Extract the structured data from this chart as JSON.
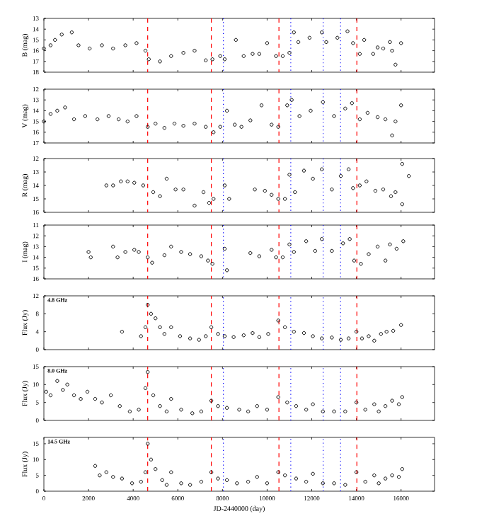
{
  "chart_data": [
    {
      "type": "scatter",
      "ylabel": "B (mag)",
      "xlim": [
        0,
        17500
      ],
      "xticks": [
        0,
        2000,
        4000,
        6000,
        8000,
        10000,
        12000,
        14000,
        16000
      ],
      "ylim": [
        18,
        13
      ],
      "yticks": [
        13,
        14,
        15,
        16,
        17,
        18
      ],
      "tick_labels": "y",
      "marker": "circle",
      "series": [
        {
          "color": "#000000",
          "x": [
            0,
            300,
            500,
            800,
            1250,
            1550,
            2050,
            2600,
            3100,
            3650,
            4150,
            4550,
            4700,
            5200,
            5700,
            6250,
            6750,
            7250,
            7550,
            7900,
            8100,
            8600,
            8950,
            9350,
            9650,
            10000,
            10400,
            10700,
            11000,
            11200,
            11400,
            11900,
            12450,
            12650,
            13150,
            13600,
            13850,
            14150,
            14350,
            14750,
            14950,
            15200,
            15500,
            15600,
            15750,
            16000
          ],
          "values": [
            15.8,
            15.5,
            15,
            14.5,
            14.3,
            15.5,
            15.8,
            15.5,
            15.8,
            15.5,
            15.3,
            16,
            16.8,
            17,
            16.5,
            16.2,
            16,
            16.9,
            16.8,
            16.5,
            16.8,
            15,
            16.5,
            16.3,
            16.3,
            15.3,
            16.5,
            16.5,
            16.2,
            14.3,
            15.2,
            14.8,
            14.3,
            15.2,
            14.8,
            14.2,
            15.3,
            16.3,
            15,
            16.3,
            15.7,
            15.8,
            15.2,
            16,
            17.3,
            15.3
          ]
        }
      ],
      "ref_lines": [
        {
          "axis": "x",
          "value": 4650,
          "color": "#ff0000",
          "line_style": "dashed"
        },
        {
          "axis": "x",
          "value": 7500,
          "color": "#ff0000",
          "line_style": "dashed"
        },
        {
          "axis": "x",
          "value": 10530,
          "color": "#ff0000",
          "line_style": "dashed"
        },
        {
          "axis": "x",
          "value": 14020,
          "color": "#ff0000",
          "line_style": "dashed"
        },
        {
          "axis": "x",
          "value": 8040,
          "color": "#0000ff",
          "line_style": "dotted"
        },
        {
          "axis": "x",
          "value": 11060,
          "color": "#0000ff",
          "line_style": "dotted"
        },
        {
          "axis": "x",
          "value": 12510,
          "color": "#0000ff",
          "line_style": "dotted"
        },
        {
          "axis": "x",
          "value": 13290,
          "color": "#0000ff",
          "line_style": "dotted"
        }
      ]
    },
    {
      "type": "scatter",
      "ylabel": "V (mag)",
      "xlim": [
        0,
        17500
      ],
      "xticks": [
        0,
        2000,
        4000,
        6000,
        8000,
        10000,
        12000,
        14000,
        16000
      ],
      "ylim": [
        17,
        12
      ],
      "yticks": [
        12,
        13,
        14,
        15,
        16,
        17
      ],
      "tick_labels": "y",
      "marker": "circle",
      "series": [
        {
          "color": "#000000",
          "x": [
            0,
            300,
            600,
            950,
            1350,
            1850,
            2400,
            2900,
            3350,
            3750,
            4150,
            4650,
            5000,
            5400,
            5850,
            6250,
            6750,
            7250,
            7600,
            7900,
            8200,
            8550,
            8850,
            9250,
            9750,
            10200,
            10500,
            10900,
            11100,
            11450,
            11950,
            12500,
            13000,
            13500,
            13800,
            14150,
            14500,
            14950,
            15300,
            15600,
            15750,
            16000
          ],
          "values": [
            15,
            14.3,
            14,
            13.7,
            14.8,
            14.5,
            14.8,
            14.5,
            14.8,
            15,
            14.5,
            15.5,
            15.2,
            15.6,
            15.2,
            15.4,
            15.2,
            15.5,
            16,
            15.5,
            14,
            15.3,
            15.5,
            14.9,
            13.5,
            15.3,
            15.5,
            13.5,
            13,
            14.5,
            14,
            13.2,
            14.5,
            13.8,
            13.3,
            14.8,
            14.2,
            14.6,
            14.8,
            16.3,
            15,
            13.5
          ]
        }
      ],
      "ref_lines": [
        {
          "axis": "x",
          "value": 4650,
          "color": "#ff0000",
          "line_style": "dashed"
        },
        {
          "axis": "x",
          "value": 7500,
          "color": "#ff0000",
          "line_style": "dashed"
        },
        {
          "axis": "x",
          "value": 10530,
          "color": "#ff0000",
          "line_style": "dashed"
        },
        {
          "axis": "x",
          "value": 14020,
          "color": "#ff0000",
          "line_style": "dashed"
        },
        {
          "axis": "x",
          "value": 8040,
          "color": "#0000ff",
          "line_style": "dotted"
        },
        {
          "axis": "x",
          "value": 11060,
          "color": "#0000ff",
          "line_style": "dotted"
        },
        {
          "axis": "x",
          "value": 12510,
          "color": "#0000ff",
          "line_style": "dotted"
        },
        {
          "axis": "x",
          "value": 13290,
          "color": "#0000ff",
          "line_style": "dotted"
        }
      ]
    },
    {
      "type": "scatter",
      "ylabel": "R (mag)",
      "xlim": [
        0,
        17500
      ],
      "xticks": [
        0,
        2000,
        4000,
        6000,
        8000,
        10000,
        12000,
        14000,
        16000
      ],
      "ylim": [
        16,
        12
      ],
      "yticks": [
        12,
        13,
        14,
        15,
        16
      ],
      "tick_labels": "y",
      "marker": "circle",
      "series": [
        {
          "color": "#000000",
          "x": [
            2800,
            3100,
            3450,
            3750,
            4050,
            4450,
            4900,
            5200,
            5500,
            5900,
            6250,
            6750,
            7150,
            7400,
            7600,
            8100,
            8300,
            9450,
            9900,
            10200,
            10500,
            10800,
            11000,
            11250,
            11650,
            12050,
            12450,
            12900,
            13300,
            13650,
            13850,
            14150,
            14450,
            14850,
            15200,
            15550,
            15750,
            16050,
            16050,
            16350
          ],
          "values": [
            14,
            14,
            13.7,
            13.7,
            13.8,
            14,
            14.5,
            14.8,
            13.5,
            14.3,
            14.3,
            15.5,
            14.5,
            15.3,
            15,
            14,
            15,
            14.3,
            14.4,
            14.7,
            15,
            15,
            13.2,
            14.5,
            12.9,
            13.5,
            12.8,
            14.3,
            13.3,
            12.8,
            14.2,
            14,
            13.7,
            14.4,
            14.3,
            14.8,
            14.5,
            15.4,
            12.4,
            13.3
          ]
        }
      ],
      "ref_lines": [
        {
          "axis": "x",
          "value": 4650,
          "color": "#ff0000",
          "line_style": "dashed"
        },
        {
          "axis": "x",
          "value": 7500,
          "color": "#ff0000",
          "line_style": "dashed"
        },
        {
          "axis": "x",
          "value": 10530,
          "color": "#ff0000",
          "line_style": "dashed"
        },
        {
          "axis": "x",
          "value": 14020,
          "color": "#ff0000",
          "line_style": "dashed"
        },
        {
          "axis": "x",
          "value": 8040,
          "color": "#0000ff",
          "line_style": "dotted"
        },
        {
          "axis": "x",
          "value": 11060,
          "color": "#0000ff",
          "line_style": "dotted"
        },
        {
          "axis": "x",
          "value": 12510,
          "color": "#0000ff",
          "line_style": "dotted"
        },
        {
          "axis": "x",
          "value": 13290,
          "color": "#0000ff",
          "line_style": "dotted"
        }
      ]
    },
    {
      "type": "scatter",
      "ylabel": "I (mag)",
      "xlim": [
        0,
        17500
      ],
      "xticks": [
        0,
        2000,
        4000,
        6000,
        8000,
        10000,
        12000,
        14000,
        16000
      ],
      "ylim": [
        16,
        11
      ],
      "yticks": [
        11,
        12,
        13,
        14,
        15,
        16
      ],
      "tick_labels": "y",
      "marker": "circle",
      "series": [
        {
          "color": "#000000",
          "x": [
            2000,
            2100,
            3100,
            3300,
            3650,
            4050,
            4250,
            4650,
            4850,
            5400,
            5700,
            6150,
            6550,
            7050,
            7350,
            7550,
            8100,
            8200,
            9250,
            9650,
            10200,
            10400,
            10700,
            11000,
            11200,
            11750,
            12150,
            12450,
            12900,
            13400,
            13700,
            13900,
            14200,
            14550,
            14950,
            15300,
            15500,
            15800,
            16100
          ],
          "values": [
            13.5,
            14,
            13,
            14,
            13.5,
            13.3,
            13.5,
            14,
            14.5,
            13.8,
            13,
            13.5,
            13.7,
            13.9,
            14.3,
            14.6,
            13.2,
            15.2,
            13.6,
            13.9,
            13.3,
            14,
            14,
            12.8,
            13.5,
            12.5,
            13.4,
            12.3,
            13.4,
            12.7,
            12.3,
            14.3,
            14.6,
            13.7,
            13,
            14.3,
            12.8,
            13.2,
            12.5
          ]
        }
      ],
      "ref_lines": [
        {
          "axis": "x",
          "value": 4650,
          "color": "#ff0000",
          "line_style": "dashed"
        },
        {
          "axis": "x",
          "value": 7500,
          "color": "#ff0000",
          "line_style": "dashed"
        },
        {
          "axis": "x",
          "value": 10530,
          "color": "#ff0000",
          "line_style": "dashed"
        },
        {
          "axis": "x",
          "value": 14020,
          "color": "#ff0000",
          "line_style": "dashed"
        },
        {
          "axis": "x",
          "value": 8040,
          "color": "#0000ff",
          "line_style": "dotted"
        },
        {
          "axis": "x",
          "value": 11060,
          "color": "#0000ff",
          "line_style": "dotted"
        },
        {
          "axis": "x",
          "value": 12510,
          "color": "#0000ff",
          "line_style": "dotted"
        },
        {
          "axis": "x",
          "value": 13290,
          "color": "#0000ff",
          "line_style": "dotted"
        }
      ]
    },
    {
      "type": "scatter",
      "ylabel": "Flux (Jy)",
      "annotations": [
        "4.8 GHz"
      ],
      "xlim": [
        0,
        17500
      ],
      "xticks": [
        0,
        2000,
        4000,
        6000,
        8000,
        10000,
        12000,
        14000,
        16000
      ],
      "ylim": [
        0,
        12
      ],
      "yticks": [
        0,
        4,
        8,
        12
      ],
      "tick_labels": "y",
      "marker": "circle",
      "series": [
        {
          "color": "#000000",
          "x": [
            3500,
            4350,
            4550,
            4650,
            4800,
            5000,
            5200,
            5400,
            5700,
            6100,
            6550,
            6950,
            7250,
            7500,
            7800,
            8100,
            8500,
            8950,
            9350,
            9650,
            10050,
            10500,
            10800,
            11200,
            11650,
            12050,
            12450,
            12900,
            13300,
            13650,
            14000,
            14250,
            14550,
            14800,
            15100,
            15350,
            15650,
            16000
          ],
          "values": [
            4,
            3,
            5,
            10,
            8,
            7,
            5,
            3.5,
            5,
            3,
            2.5,
            2.2,
            3,
            5,
            3.5,
            3,
            2.8,
            3.2,
            3.7,
            2.8,
            3.5,
            6.5,
            5,
            4,
            3.7,
            3,
            2.5,
            2.7,
            2.2,
            2.5,
            4,
            2.5,
            3,
            2,
            3.5,
            4,
            4.2,
            5.5
          ]
        }
      ],
      "ref_lines": [
        {
          "axis": "x",
          "value": 4650,
          "color": "#ff0000",
          "line_style": "dashed"
        },
        {
          "axis": "x",
          "value": 7500,
          "color": "#ff0000",
          "line_style": "dashed"
        },
        {
          "axis": "x",
          "value": 10530,
          "color": "#ff0000",
          "line_style": "dashed"
        },
        {
          "axis": "x",
          "value": 14020,
          "color": "#ff0000",
          "line_style": "dashed"
        },
        {
          "axis": "x",
          "value": 8040,
          "color": "#0000ff",
          "line_style": "dotted"
        },
        {
          "axis": "x",
          "value": 11060,
          "color": "#0000ff",
          "line_style": "dotted"
        },
        {
          "axis": "x",
          "value": 12510,
          "color": "#0000ff",
          "line_style": "dotted"
        },
        {
          "axis": "x",
          "value": 13290,
          "color": "#0000ff",
          "line_style": "dotted"
        }
      ]
    },
    {
      "type": "scatter",
      "ylabel": "Flux (Jy)",
      "annotations": [
        "8.0 GHz"
      ],
      "xlim": [
        0,
        17500
      ],
      "xticks": [
        0,
        2000,
        4000,
        6000,
        8000,
        10000,
        12000,
        14000,
        16000
      ],
      "ylim": [
        0,
        15
      ],
      "yticks": [
        0,
        5,
        10,
        15
      ],
      "tick_labels": "y",
      "marker": "circle",
      "series": [
        {
          "color": "#000000",
          "x": [
            100,
            300,
            600,
            850,
            1050,
            1350,
            1650,
            1950,
            2300,
            2600,
            3000,
            3400,
            3850,
            4250,
            4550,
            4650,
            4900,
            5200,
            5500,
            5700,
            6150,
            6650,
            7050,
            7500,
            7800,
            8200,
            8750,
            9150,
            9550,
            10000,
            10500,
            10900,
            11300,
            11750,
            12050,
            12500,
            13000,
            13500,
            14000,
            14400,
            14800,
            15000,
            15300,
            15600,
            15900,
            16050
          ],
          "values": [
            8,
            7,
            11,
            8.5,
            10,
            7,
            6,
            8,
            6,
            5,
            7,
            4,
            2.5,
            3,
            9,
            13.5,
            7,
            4,
            2.5,
            6,
            3,
            2,
            2.5,
            5.5,
            4,
            3.5,
            3,
            2.5,
            4,
            3,
            6.5,
            5,
            4,
            3,
            4.5,
            2.5,
            2.5,
            2.5,
            5,
            3,
            4.5,
            2.5,
            4,
            5.5,
            4.5,
            6.5
          ]
        }
      ],
      "ref_lines": [
        {
          "axis": "x",
          "value": 4650,
          "color": "#ff0000",
          "line_style": "dashed"
        },
        {
          "axis": "x",
          "value": 7500,
          "color": "#ff0000",
          "line_style": "dashed"
        },
        {
          "axis": "x",
          "value": 10530,
          "color": "#ff0000",
          "line_style": "dashed"
        },
        {
          "axis": "x",
          "value": 14020,
          "color": "#ff0000",
          "line_style": "dashed"
        },
        {
          "axis": "x",
          "value": 8040,
          "color": "#0000ff",
          "line_style": "dotted"
        },
        {
          "axis": "x",
          "value": 11060,
          "color": "#0000ff",
          "line_style": "dotted"
        },
        {
          "axis": "x",
          "value": 12510,
          "color": "#0000ff",
          "line_style": "dotted"
        },
        {
          "axis": "x",
          "value": 13290,
          "color": "#0000ff",
          "line_style": "dotted"
        }
      ]
    },
    {
      "type": "scatter",
      "ylabel": "Flux (Jy)",
      "xlabel": "JD-2440000 (day)",
      "annotations": [
        "14.5 GHz"
      ],
      "xlim": [
        0,
        17500
      ],
      "xticks": [
        0,
        2000,
        4000,
        6000,
        8000,
        10000,
        12000,
        14000,
        16000
      ],
      "ylim": [
        0,
        17
      ],
      "yticks": [
        0,
        5,
        10,
        15
      ],
      "marker": "circle",
      "series": [
        {
          "color": "#000000",
          "x": [
            2300,
            2500,
            2800,
            3100,
            3500,
            3950,
            4350,
            4550,
            4650,
            4800,
            5000,
            5300,
            5500,
            5700,
            6150,
            6550,
            7050,
            7500,
            7800,
            8200,
            8650,
            9150,
            9550,
            10000,
            10500,
            10800,
            11300,
            11750,
            12050,
            12500,
            13000,
            13500,
            14000,
            14400,
            14800,
            15000,
            15300,
            15600,
            15900,
            16050
          ],
          "values": [
            8,
            5,
            6,
            4.5,
            4,
            2.5,
            3,
            6,
            15,
            10,
            7,
            3.5,
            2,
            6,
            2.5,
            2,
            3,
            6,
            4,
            3.5,
            2.5,
            3,
            4.5,
            2.5,
            6,
            5,
            4,
            3,
            5.5,
            2.5,
            2.5,
            2,
            6,
            3,
            5,
            2.5,
            4,
            5,
            4.5,
            7
          ]
        }
      ],
      "ref_lines": [
        {
          "axis": "x",
          "value": 4650,
          "color": "#ff0000",
          "line_style": "dashed"
        },
        {
          "axis": "x",
          "value": 7500,
          "color": "#ff0000",
          "line_style": "dashed"
        },
        {
          "axis": "x",
          "value": 10530,
          "color": "#ff0000",
          "line_style": "dashed"
        },
        {
          "axis": "x",
          "value": 14020,
          "color": "#ff0000",
          "line_style": "dashed"
        },
        {
          "axis": "x",
          "value": 8040,
          "color": "#0000ff",
          "line_style": "dotted"
        },
        {
          "axis": "x",
          "value": 11060,
          "color": "#0000ff",
          "line_style": "dotted"
        },
        {
          "axis": "x",
          "value": 12510,
          "color": "#0000ff",
          "line_style": "dotted"
        },
        {
          "axis": "x",
          "value": 13290,
          "color": "#0000ff",
          "line_style": "dotted"
        }
      ]
    }
  ]
}
